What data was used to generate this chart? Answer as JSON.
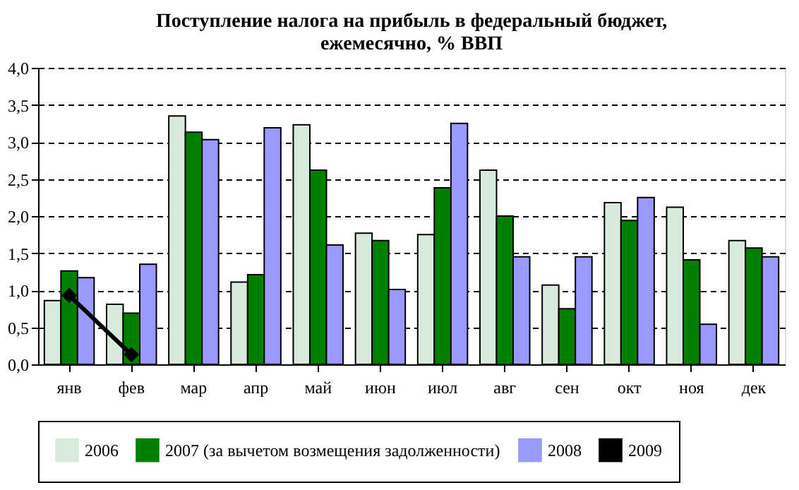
{
  "chart_data": {
    "type": "bar",
    "title": "Поступление налога на прибыль в федеральный бюджет,\nежемесячно, % ВВП",
    "categories": [
      "янв",
      "фев",
      "мар",
      "апр",
      "май",
      "июн",
      "июл",
      "авг",
      "сен",
      "окт",
      "ноя",
      "дек"
    ],
    "series": [
      {
        "name": "2006",
        "color": "#d8eadc",
        "values": [
          0.86,
          0.81,
          3.35,
          1.11,
          3.23,
          1.77,
          1.75,
          2.62,
          1.07,
          2.18,
          2.12,
          1.67
        ]
      },
      {
        "name": "2007 (за вычетом возмещения задолженности)",
        "color": "#008000",
        "values": [
          1.26,
          0.69,
          3.13,
          1.21,
          2.62,
          1.67,
          2.38,
          2.0,
          0.75,
          1.94,
          1.41,
          1.57
        ]
      },
      {
        "name": "2008",
        "color": "#9999ff",
        "values": [
          1.17,
          1.35,
          3.03,
          3.19,
          1.61,
          1.01,
          3.25,
          1.45,
          1.45,
          2.25,
          0.54,
          1.45
        ]
      },
      {
        "name": "2009",
        "color": "#000000",
        "type": "line",
        "marker": "diamond",
        "values": [
          0.93,
          0.13,
          null,
          null,
          null,
          null,
          null,
          null,
          null,
          null,
          null,
          null
        ]
      }
    ],
    "ylim": [
      0,
      4
    ],
    "yticks": [
      {
        "value": 0,
        "label": "0,0"
      },
      {
        "value": 0.5,
        "label": "0,5"
      },
      {
        "value": 1,
        "label": "1,0"
      },
      {
        "value": 1.5,
        "label": "1,5"
      },
      {
        "value": 2,
        "label": "2,0"
      },
      {
        "value": 2.5,
        "label": "2,5"
      },
      {
        "value": 3,
        "label": "3,0"
      },
      {
        "value": 3.5,
        "label": "3,5"
      },
      {
        "value": 4,
        "label": "4,0"
      }
    ],
    "grid": "y",
    "legend": "bottom"
  }
}
